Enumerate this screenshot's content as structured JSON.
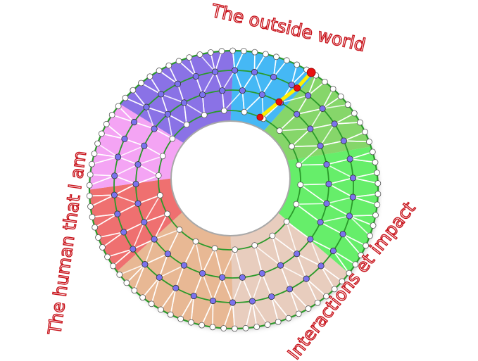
{
  "labels": {
    "top": "The outside world",
    "left": "The human that I am",
    "right": "Interactions et impact"
  },
  "colors": {
    "label_outline": "#c8141c",
    "ring_line": "#2a9a2a",
    "mesh_line": "#ffffff",
    "outer_node": "#ffffff",
    "inner_node": "#7b72ee",
    "highlight_path": "#ffee00",
    "highlight_node": "#e81010"
  },
  "sectors": [
    {
      "name": "blue",
      "color": "#45b8f5"
    },
    {
      "name": "light-green",
      "color": "#86d66a"
    },
    {
      "name": "bright-green",
      "color": "#66ee6a"
    },
    {
      "name": "beige",
      "color": "#e8cdbe"
    },
    {
      "name": "tan",
      "color": "#e8b894"
    },
    {
      "name": "red",
      "color": "#ef7070"
    },
    {
      "name": "pink",
      "color": "#f4a4f4"
    },
    {
      "name": "purple",
      "color": "#8a72e6"
    }
  ]
}
